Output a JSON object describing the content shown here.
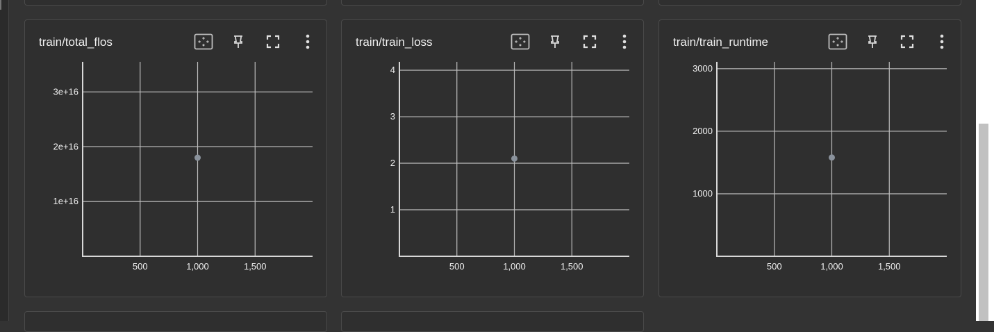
{
  "colors": {
    "background": "#333333",
    "card": "#2f2f2f",
    "card_border": "#4a4a4a",
    "grid": "#bdbdbd",
    "point": "#8a929c",
    "text": "#f0f0f0"
  },
  "toolbar_icons": [
    "fit-domain-icon",
    "pin-icon",
    "fullscreen-icon",
    "more-vert-icon"
  ],
  "cards": [
    {
      "title": "train/total_flos",
      "chart_data": {
        "type": "scatter",
        "title": "train/total_flos",
        "x": [
          1000
        ],
        "y": [
          1.8e+16
        ],
        "x_ticks": [
          "500",
          "1,000",
          "1,500"
        ],
        "y_ticks": [
          "1e+16",
          "2e+16",
          "3e+16"
        ],
        "xlim": [
          0,
          2000
        ],
        "ylim": [
          0,
          3.55e+16
        ],
        "grid": true
      }
    },
    {
      "title": "train/train_loss",
      "chart_data": {
        "type": "scatter",
        "title": "train/train_loss",
        "x": [
          1000
        ],
        "y": [
          2.1
        ],
        "x_ticks": [
          "500",
          "1,000",
          "1,500"
        ],
        "y_ticks": [
          "1",
          "2",
          "3",
          "4"
        ],
        "xlim": [
          0,
          2000
        ],
        "ylim": [
          0,
          4.18
        ],
        "grid": true
      }
    },
    {
      "title": "train/train_runtime",
      "chart_data": {
        "type": "scatter",
        "title": "train/train_runtime",
        "x": [
          1000
        ],
        "y": [
          1580
        ],
        "x_ticks": [
          "500",
          "1,000",
          "1,500"
        ],
        "y_ticks": [
          "1000",
          "2000",
          "3000"
        ],
        "xlim": [
          0,
          2000
        ],
        "ylim": [
          0,
          3110
        ],
        "grid": true
      }
    }
  ]
}
